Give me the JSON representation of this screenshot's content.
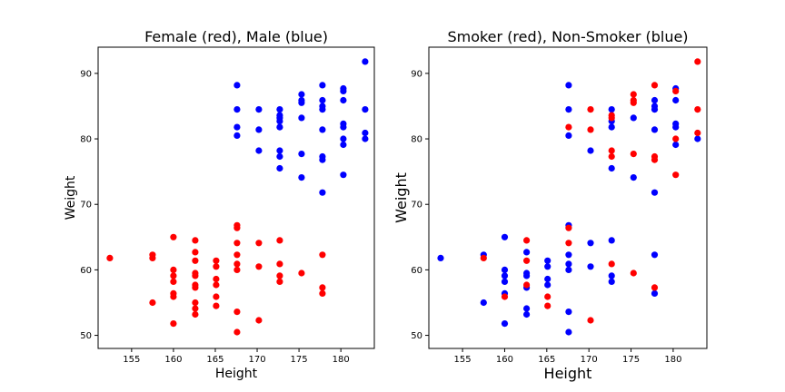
{
  "chart_data": [
    {
      "type": "scatter",
      "title": "Female (red), Male (blue)",
      "xlabel": "Height",
      "ylabel": "Weight",
      "xlim": [
        151,
        184
      ],
      "ylim": [
        48,
        94
      ],
      "xticks": [
        155,
        160,
        165,
        170,
        175,
        180
      ],
      "yticks": [
        50,
        60,
        70,
        80,
        90
      ],
      "grid": false,
      "series": [
        {
          "color": "#ff0000",
          "points": [
            [
              152.4,
              61.8
            ],
            [
              157.5,
              62.3
            ],
            [
              157.5,
              61.8
            ],
            [
              157.5,
              55.0
            ],
            [
              160.0,
              65.0
            ],
            [
              160.0,
              60.0
            ],
            [
              160.0,
              59.1
            ],
            [
              160.0,
              58.2
            ],
            [
              160.0,
              56.4
            ],
            [
              160.0,
              55.9
            ],
            [
              160.0,
              51.8
            ],
            [
              162.6,
              64.5
            ],
            [
              162.6,
              62.7
            ],
            [
              162.6,
              61.4
            ],
            [
              162.6,
              59.5
            ],
            [
              162.6,
              59.1
            ],
            [
              162.6,
              57.7
            ],
            [
              162.6,
              57.3
            ],
            [
              162.6,
              55.0
            ],
            [
              162.6,
              54.1
            ],
            [
              162.6,
              53.2
            ],
            [
              165.1,
              61.4
            ],
            [
              165.1,
              60.5
            ],
            [
              165.1,
              58.6
            ],
            [
              165.1,
              57.7
            ],
            [
              165.1,
              55.9
            ],
            [
              165.1,
              54.5
            ],
            [
              167.6,
              66.8
            ],
            [
              167.6,
              66.4
            ],
            [
              167.6,
              64.1
            ],
            [
              167.6,
              62.3
            ],
            [
              167.6,
              60.9
            ],
            [
              167.6,
              60.0
            ],
            [
              167.6,
              53.6
            ],
            [
              167.6,
              50.5
            ],
            [
              170.2,
              64.1
            ],
            [
              170.2,
              60.5
            ],
            [
              170.2,
              52.3
            ],
            [
              172.7,
              64.5
            ],
            [
              172.7,
              60.9
            ],
            [
              172.7,
              59.1
            ],
            [
              172.7,
              58.2
            ],
            [
              175.3,
              59.5
            ],
            [
              177.8,
              62.3
            ],
            [
              177.8,
              57.3
            ],
            [
              177.8,
              56.4
            ]
          ]
        },
        {
          "color": "#0000ff",
          "points": [
            [
              167.6,
              88.2
            ],
            [
              167.6,
              84.5
            ],
            [
              167.6,
              81.8
            ],
            [
              167.6,
              80.5
            ],
            [
              170.2,
              84.5
            ],
            [
              170.2,
              81.4
            ],
            [
              170.2,
              78.2
            ],
            [
              172.7,
              84.5
            ],
            [
              172.7,
              83.6
            ],
            [
              172.7,
              83.2
            ],
            [
              172.7,
              82.7
            ],
            [
              172.7,
              81.8
            ],
            [
              172.7,
              78.2
            ],
            [
              172.7,
              77.3
            ],
            [
              172.7,
              75.5
            ],
            [
              175.3,
              86.8
            ],
            [
              175.3,
              85.9
            ],
            [
              175.3,
              85.5
            ],
            [
              175.3,
              83.2
            ],
            [
              175.3,
              77.7
            ],
            [
              175.3,
              74.1
            ],
            [
              177.8,
              88.2
            ],
            [
              177.8,
              85.9
            ],
            [
              177.8,
              85.0
            ],
            [
              177.8,
              84.5
            ],
            [
              177.8,
              81.4
            ],
            [
              177.8,
              77.3
            ],
            [
              177.8,
              76.8
            ],
            [
              177.8,
              71.8
            ],
            [
              180.3,
              87.7
            ],
            [
              180.3,
              87.3
            ],
            [
              180.3,
              85.9
            ],
            [
              180.3,
              82.3
            ],
            [
              180.3,
              81.8
            ],
            [
              180.3,
              80.0
            ],
            [
              180.3,
              79.1
            ],
            [
              180.3,
              74.5
            ],
            [
              182.9,
              91.8
            ],
            [
              182.9,
              84.5
            ],
            [
              182.9,
              80.9
            ],
            [
              182.9,
              80.0
            ]
          ]
        }
      ]
    },
    {
      "type": "scatter",
      "title": "Smoker (red), Non-Smoker (blue)",
      "xlabel": "Height",
      "ylabel": "Weight",
      "xlim": [
        151,
        184
      ],
      "ylim": [
        48,
        94
      ],
      "xticks": [
        155,
        160,
        165,
        170,
        175,
        180
      ],
      "yticks": [
        50,
        60,
        70,
        80,
        90
      ],
      "grid": false,
      "series": [
        {
          "color": "#0000ff",
          "points": [
            [
              152.4,
              61.8
            ],
            [
              157.5,
              62.3
            ],
            [
              157.5,
              55.0
            ],
            [
              160.0,
              65.0
            ],
            [
              160.0,
              60.0
            ],
            [
              160.0,
              59.1
            ],
            [
              160.0,
              58.2
            ],
            [
              160.0,
              56.4
            ],
            [
              160.0,
              51.8
            ],
            [
              162.6,
              62.7
            ],
            [
              162.6,
              59.5
            ],
            [
              162.6,
              59.1
            ],
            [
              162.6,
              57.3
            ],
            [
              162.6,
              54.1
            ],
            [
              162.6,
              53.2
            ],
            [
              165.1,
              61.4
            ],
            [
              165.1,
              60.5
            ],
            [
              165.1,
              58.6
            ],
            [
              165.1,
              57.7
            ],
            [
              167.6,
              88.2
            ],
            [
              167.6,
              84.5
            ],
            [
              167.6,
              80.5
            ],
            [
              167.6,
              66.8
            ],
            [
              167.6,
              62.3
            ],
            [
              167.6,
              60.9
            ],
            [
              167.6,
              60.0
            ],
            [
              167.6,
              53.6
            ],
            [
              167.6,
              50.5
            ],
            [
              170.2,
              78.2
            ],
            [
              170.2,
              64.1
            ],
            [
              170.2,
              60.5
            ],
            [
              172.7,
              84.5
            ],
            [
              172.7,
              82.7
            ],
            [
              172.7,
              81.8
            ],
            [
              172.7,
              75.5
            ],
            [
              172.7,
              64.5
            ],
            [
              172.7,
              59.1
            ],
            [
              172.7,
              58.2
            ],
            [
              175.3,
              83.2
            ],
            [
              175.3,
              74.1
            ],
            [
              177.8,
              85.9
            ],
            [
              177.8,
              85.0
            ],
            [
              177.8,
              84.5
            ],
            [
              177.8,
              81.4
            ],
            [
              177.8,
              71.8
            ],
            [
              177.8,
              62.3
            ],
            [
              177.8,
              56.4
            ],
            [
              180.3,
              87.7
            ],
            [
              180.3,
              85.9
            ],
            [
              180.3,
              82.3
            ],
            [
              180.3,
              81.8
            ],
            [
              180.3,
              79.1
            ],
            [
              182.9,
              80.0
            ]
          ]
        },
        {
          "color": "#ff0000",
          "points": [
            [
              157.5,
              61.8
            ],
            [
              160.0,
              55.9
            ],
            [
              162.6,
              64.5
            ],
            [
              162.6,
              61.4
            ],
            [
              162.6,
              57.7
            ],
            [
              165.1,
              55.9
            ],
            [
              165.1,
              54.5
            ],
            [
              167.6,
              81.8
            ],
            [
              167.6,
              66.4
            ],
            [
              167.6,
              64.1
            ],
            [
              170.2,
              84.5
            ],
            [
              170.2,
              81.4
            ],
            [
              170.2,
              52.3
            ],
            [
              172.7,
              83.6
            ],
            [
              172.7,
              83.2
            ],
            [
              172.7,
              78.2
            ],
            [
              172.7,
              77.3
            ],
            [
              172.7,
              60.9
            ],
            [
              175.3,
              86.8
            ],
            [
              175.3,
              85.9
            ],
            [
              175.3,
              85.5
            ],
            [
              175.3,
              77.7
            ],
            [
              175.3,
              59.5
            ],
            [
              177.8,
              88.2
            ],
            [
              177.8,
              77.3
            ],
            [
              177.8,
              76.8
            ],
            [
              177.8,
              57.3
            ],
            [
              180.3,
              87.3
            ],
            [
              180.3,
              80.0
            ],
            [
              180.3,
              74.5
            ],
            [
              182.9,
              91.8
            ],
            [
              182.9,
              84.5
            ],
            [
              182.9,
              80.9
            ]
          ]
        }
      ]
    }
  ]
}
